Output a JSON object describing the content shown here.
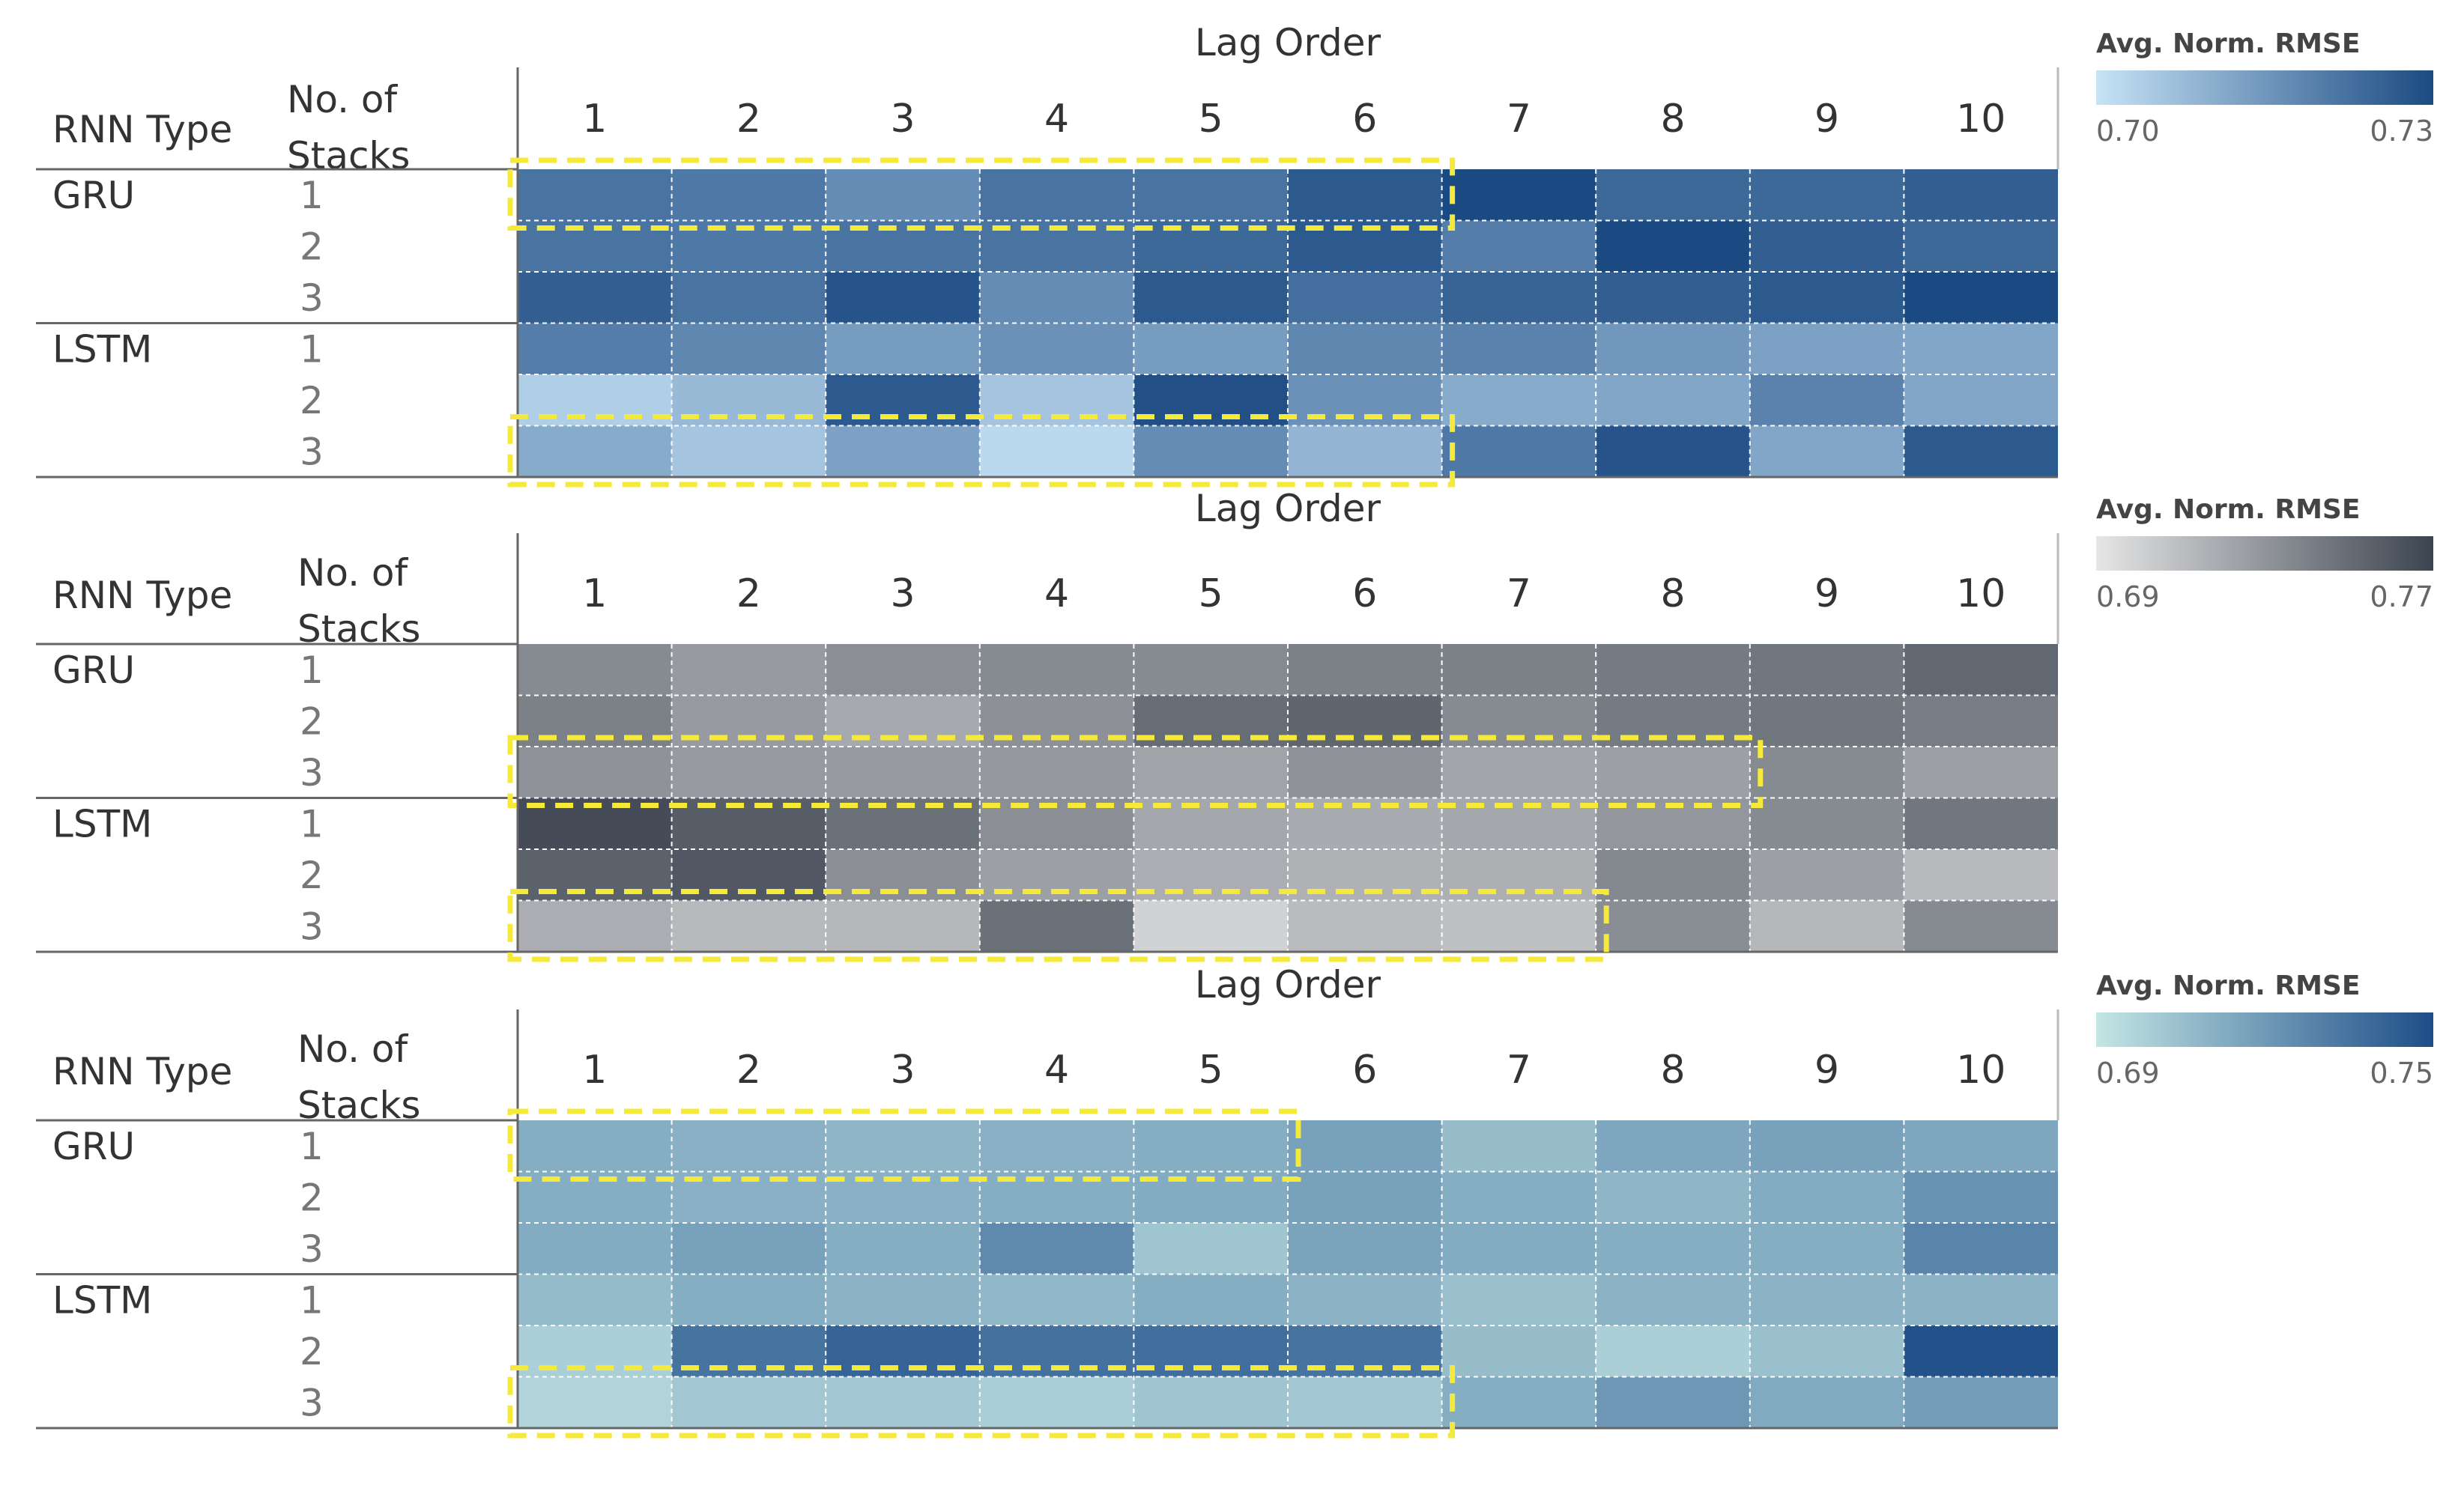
{
  "chart_data": [
    {
      "type": "heatmap",
      "title": "Lag Order",
      "row_headers": [
        "RNN Type",
        "No. of Stacks"
      ],
      "row_groups": [
        {
          "name": "GRU",
          "stacks": [
            "1",
            "2",
            "3"
          ]
        },
        {
          "name": "LSTM",
          "stacks": [
            "1",
            "2",
            "3"
          ]
        }
      ],
      "x": [
        "1",
        "2",
        "3",
        "4",
        "5",
        "6",
        "7",
        "8",
        "9",
        "10"
      ],
      "legend": {
        "title": "Avg. Norm. RMSE",
        "min": 0.7,
        "max": 0.73,
        "min_label": "0.70",
        "max_label": "0.73",
        "color_low": "#c6e3f6",
        "color_high": "#1b4a82"
      },
      "values": [
        [
          0.722,
          0.721,
          0.717,
          0.722,
          0.722,
          0.727,
          0.73,
          0.724,
          0.724,
          0.726
        ],
        [
          0.722,
          0.721,
          0.722,
          0.722,
          0.724,
          0.727,
          0.72,
          0.732,
          0.726,
          0.724
        ],
        [
          0.726,
          0.722,
          0.728,
          0.717,
          0.727,
          0.723,
          0.725,
          0.726,
          0.727,
          0.73
        ],
        [
          0.72,
          0.718,
          0.714,
          0.716,
          0.714,
          0.718,
          0.719,
          0.715,
          0.713,
          0.712
        ],
        [
          0.704,
          0.708,
          0.727,
          0.706,
          0.729,
          0.716,
          0.711,
          0.712,
          0.719,
          0.712
        ],
        [
          0.711,
          0.706,
          0.713,
          0.702,
          0.717,
          0.709,
          0.721,
          0.728,
          0.712,
          0.727
        ]
      ],
      "highlights": [
        {
          "row": 0,
          "col_start": 0,
          "col_end": 5
        },
        {
          "row": 5,
          "col_start": 0,
          "col_end": 5
        }
      ]
    },
    {
      "type": "heatmap",
      "title": "Lag Order",
      "row_headers": [
        "RNN Type",
        "No. of Stacks"
      ],
      "row_groups": [
        {
          "name": "GRU",
          "stacks": [
            "1",
            "2",
            "3"
          ]
        },
        {
          "name": "LSTM",
          "stacks": [
            "1",
            "2",
            "3"
          ]
        }
      ],
      "x": [
        "1",
        "2",
        "3",
        "4",
        "5",
        "6",
        "7",
        "8",
        "9",
        "10"
      ],
      "legend": {
        "title": "Avg. Norm. RMSE",
        "min": 0.69,
        "max": 0.77,
        "min_label": "0.69",
        "max_label": "0.77",
        "color_low": "#e6e6e6",
        "color_high": "#3c4450"
      },
      "values": [
        [
          0.735,
          0.727,
          0.733,
          0.735,
          0.735,
          0.74,
          0.74,
          0.743,
          0.745,
          0.752
        ],
        [
          0.74,
          0.727,
          0.72,
          0.732,
          0.75,
          0.753,
          0.735,
          0.743,
          0.745,
          0.742
        ],
        [
          0.731,
          0.727,
          0.727,
          0.728,
          0.723,
          0.731,
          0.722,
          0.725,
          0.735,
          0.725
        ],
        [
          0.766,
          0.757,
          0.748,
          0.733,
          0.721,
          0.719,
          0.721,
          0.729,
          0.735,
          0.745
        ],
        [
          0.755,
          0.76,
          0.733,
          0.725,
          0.718,
          0.716,
          0.717,
          0.736,
          0.725,
          0.712
        ],
        [
          0.718,
          0.712,
          0.713,
          0.748,
          0.7,
          0.711,
          0.709,
          0.734,
          0.713,
          0.735
        ]
      ],
      "highlights": [
        {
          "row": 2,
          "col_start": 0,
          "col_end": 7
        },
        {
          "row": 5,
          "col_start": 0,
          "col_end": 6
        }
      ]
    },
    {
      "type": "heatmap",
      "title": "Lag Order",
      "row_headers": [
        "RNN Type",
        "No. of Stacks"
      ],
      "row_groups": [
        {
          "name": "GRU",
          "stacks": [
            "1",
            "2",
            "3"
          ]
        },
        {
          "name": "LSTM",
          "stacks": [
            "1",
            "2",
            "3"
          ]
        }
      ],
      "x": [
        "1",
        "2",
        "3",
        "4",
        "5",
        "6",
        "7",
        "8",
        "9",
        "10"
      ],
      "legend": {
        "title": "Avg. Norm. RMSE",
        "min": 0.69,
        "max": 0.75,
        "min_label": "0.69",
        "max_label": "0.75",
        "color_low": "#c3e6e4",
        "color_high": "#1d4d88"
      },
      "values": [
        [
          0.712,
          0.711,
          0.709,
          0.711,
          0.712,
          0.717,
          0.706,
          0.715,
          0.717,
          0.715
        ],
        [
          0.712,
          0.711,
          0.711,
          0.712,
          0.713,
          0.717,
          0.712,
          0.709,
          0.713,
          0.723
        ],
        [
          0.713,
          0.717,
          0.712,
          0.726,
          0.703,
          0.716,
          0.713,
          0.712,
          0.712,
          0.728
        ],
        [
          0.707,
          0.712,
          0.71,
          0.708,
          0.712,
          0.71,
          0.705,
          0.71,
          0.71,
          0.71
        ],
        [
          0.699,
          0.735,
          0.741,
          0.736,
          0.737,
          0.735,
          0.706,
          0.699,
          0.705,
          0.748
        ],
        [
          0.697,
          0.702,
          0.702,
          0.699,
          0.703,
          0.702,
          0.712,
          0.721,
          0.714,
          0.719
        ]
      ],
      "highlights": [
        {
          "row": 0,
          "col_start": 0,
          "col_end": 4
        },
        {
          "row": 5,
          "col_start": 0,
          "col_end": 5
        }
      ]
    }
  ]
}
